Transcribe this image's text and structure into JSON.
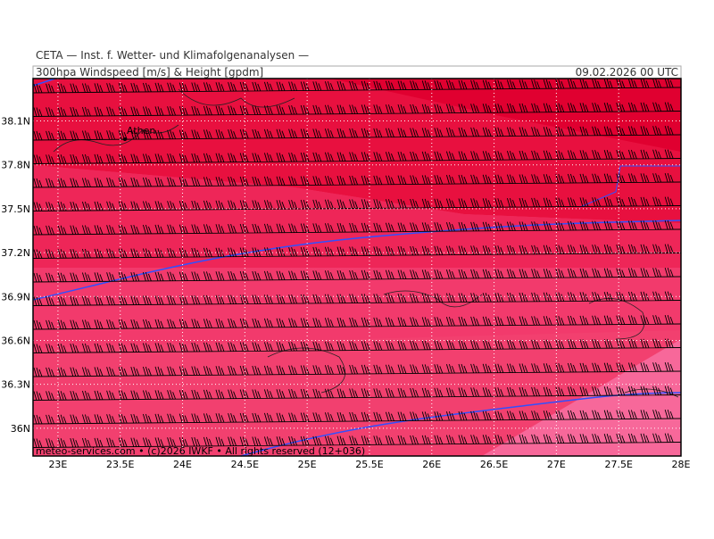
{
  "header": {
    "institute": "CETA — Inst. f. Wetter- und Klimafolgenanalysen —",
    "title": "300hpa Windspeed [m/s] & Height [gpdm]",
    "date": "09.02.2026 00 UTC"
  },
  "map": {
    "xlim": [
      22.8,
      28
    ],
    "ylim": [
      35.81,
      38.39
    ],
    "xticks": [
      {
        "value": 23,
        "label": "23E"
      },
      {
        "value": 23.5,
        "label": "23.5E"
      },
      {
        "value": 24,
        "label": "24E"
      },
      {
        "value": 24.5,
        "label": "24.5E"
      },
      {
        "value": 25,
        "label": "25E"
      },
      {
        "value": 25.5,
        "label": "25.5E"
      },
      {
        "value": 26,
        "label": "26E"
      },
      {
        "value": 26.5,
        "label": "26.5E"
      },
      {
        "value": 27,
        "label": "27E"
      },
      {
        "value": 27.5,
        "label": "27.5E"
      },
      {
        "value": 28,
        "label": "28E"
      }
    ],
    "yticks": [
      {
        "value": 36,
        "label": "36N"
      },
      {
        "value": 36.3,
        "label": "36.3N"
      },
      {
        "value": 36.6,
        "label": "36.6N"
      },
      {
        "value": 36.9,
        "label": "36.9N"
      },
      {
        "value": 37.2,
        "label": "37.2N"
      },
      {
        "value": 37.5,
        "label": "37.5N"
      },
      {
        "value": 37.8,
        "label": "37.8N"
      },
      {
        "value": 38.1,
        "label": "38.1N"
      }
    ],
    "city": "Athen",
    "footer": "meteo-services.com • (c)2026 IWKF • All rights reserved (12+036)"
  }
}
